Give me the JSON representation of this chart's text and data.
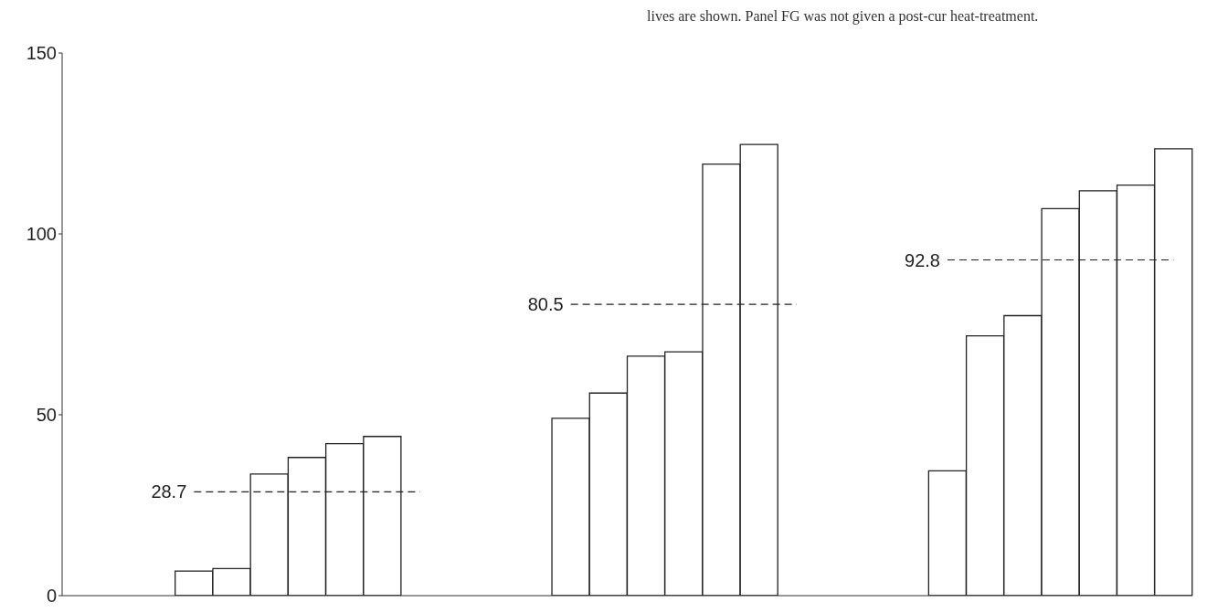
{
  "chart_data": {
    "type": "bar",
    "categories": [
      null,
      null,
      null,
      null,
      null,
      null,
      null,
      null,
      null,
      null,
      null,
      null,
      null,
      null,
      null,
      null,
      null,
      null,
      null,
      null,
      null,
      null,
      null,
      null,
      null,
      null,
      null,
      null,
      null,
      null
    ],
    "values": [
      null,
      null,
      null,
      6.8,
      7.5,
      33.6,
      38.2,
      42,
      44,
      null,
      null,
      null,
      null,
      49,
      56,
      66.2,
      67.4,
      119.3,
      124.7,
      null,
      null,
      null,
      null,
      34.5,
      71.8,
      77.4,
      107,
      111.9,
      113.5,
      123.5
    ],
    "color": "#ffffff",
    "ylim": [
      0,
      150
    ],
    "yticks": [
      0,
      50,
      100,
      150
    ],
    "ref_lines": [
      {
        "axis": "y",
        "value": 28.7,
        "label": "28.7",
        "line_style": "dashed",
        "color": "#222222"
      },
      {
        "axis": "y",
        "value": 80.5,
        "label": "80.5",
        "line_style": "dashed",
        "color": "#222222"
      },
      {
        "axis": "y",
        "value": 92.8,
        "label": "92.8",
        "line_style": "dashed",
        "color": "#222222"
      }
    ],
    "annotations": [
      "lives are shown. Panel FG was not given a post-cur heat-treatment."
    ]
  }
}
